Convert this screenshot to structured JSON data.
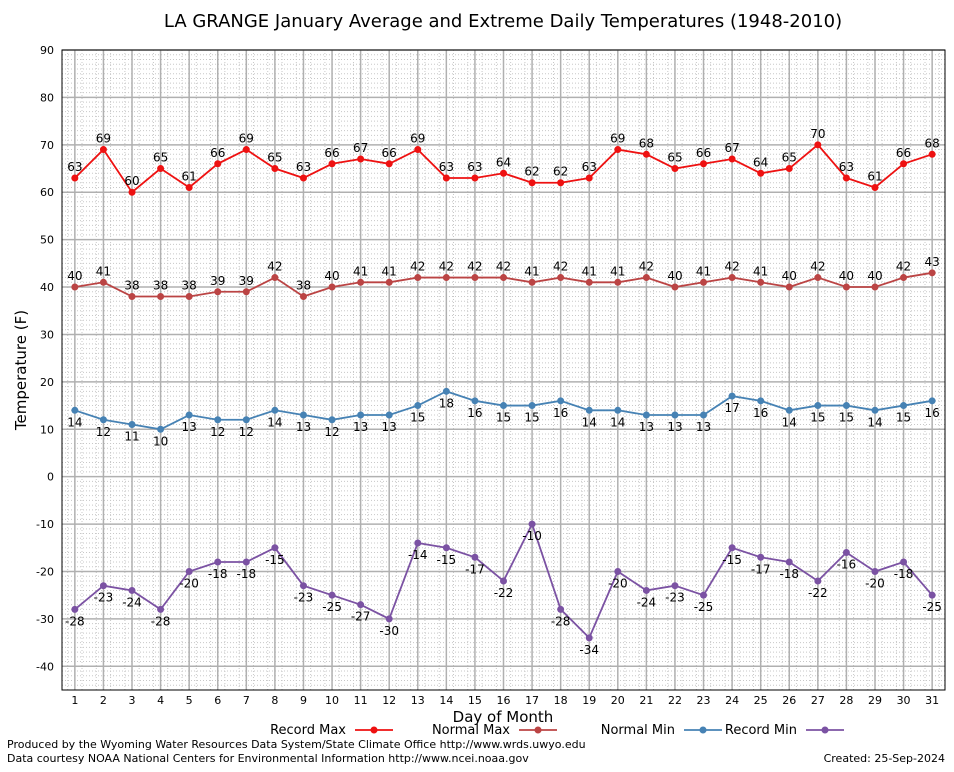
{
  "chart_data": {
    "type": "line",
    "title": "LA GRANGE January Average and Extreme Daily Temperatures (1948-2010)",
    "xlabel": "Day of Month",
    "ylabel": "Temperature (F)",
    "ylim": [
      -45,
      90
    ],
    "yticks": [
      -40,
      -30,
      -20,
      -10,
      0,
      10,
      20,
      30,
      40,
      50,
      60,
      70,
      80,
      90
    ],
    "x": [
      1,
      2,
      3,
      4,
      5,
      6,
      7,
      8,
      9,
      10,
      11,
      12,
      13,
      14,
      15,
      16,
      17,
      18,
      19,
      20,
      21,
      22,
      23,
      24,
      25,
      26,
      27,
      28,
      29,
      30,
      31
    ],
    "grid": true,
    "legend_position": "bottom",
    "series": [
      {
        "name": "Record Max",
        "color": "#ee1111",
        "values": [
          63,
          69,
          60,
          65,
          61,
          66,
          69,
          65,
          63,
          66,
          67,
          66,
          69,
          63,
          63,
          64,
          62,
          62,
          63,
          69,
          68,
          65,
          66,
          67,
          64,
          65,
          70,
          63,
          61,
          66,
          68
        ]
      },
      {
        "name": "Normal Max",
        "color": "#bb4444",
        "values": [
          40,
          41,
          38,
          38,
          38,
          39,
          39,
          42,
          38,
          40,
          41,
          41,
          42,
          42,
          42,
          42,
          41,
          42,
          41,
          41,
          42,
          40,
          41,
          42,
          41,
          40,
          42,
          40,
          40,
          42,
          43
        ]
      },
      {
        "name": "Normal Min",
        "color": "#4682b4",
        "values": [
          14,
          12,
          11,
          10,
          13,
          12,
          12,
          14,
          13,
          12,
          13,
          13,
          15,
          18,
          16,
          15,
          15,
          16,
          14,
          14,
          13,
          13,
          13,
          17,
          16,
          14,
          15,
          15,
          14,
          15,
          16
        ]
      },
      {
        "name": "Record Min",
        "color": "#7b52a3",
        "values": [
          -28,
          -23,
          -24,
          -28,
          -20,
          -18,
          -18,
          -15,
          -23,
          -25,
          -27,
          -30,
          -14,
          -15,
          -17,
          -22,
          -10,
          -28,
          -34,
          -20,
          -24,
          -23,
          -25,
          -15,
          -17,
          -18,
          -22,
          -16,
          -20,
          -18,
          -25
        ]
      }
    ]
  },
  "footer": {
    "produced_by": "Produced by the Wyoming Water Resources Data System/State Climate Office http://www.wrds.uwyo.edu",
    "courtesy": "Data courtesy NOAA National Centers for Environmental Information http://www.ncei.noaa.gov",
    "created": "Created:  25-Sep-2024"
  }
}
